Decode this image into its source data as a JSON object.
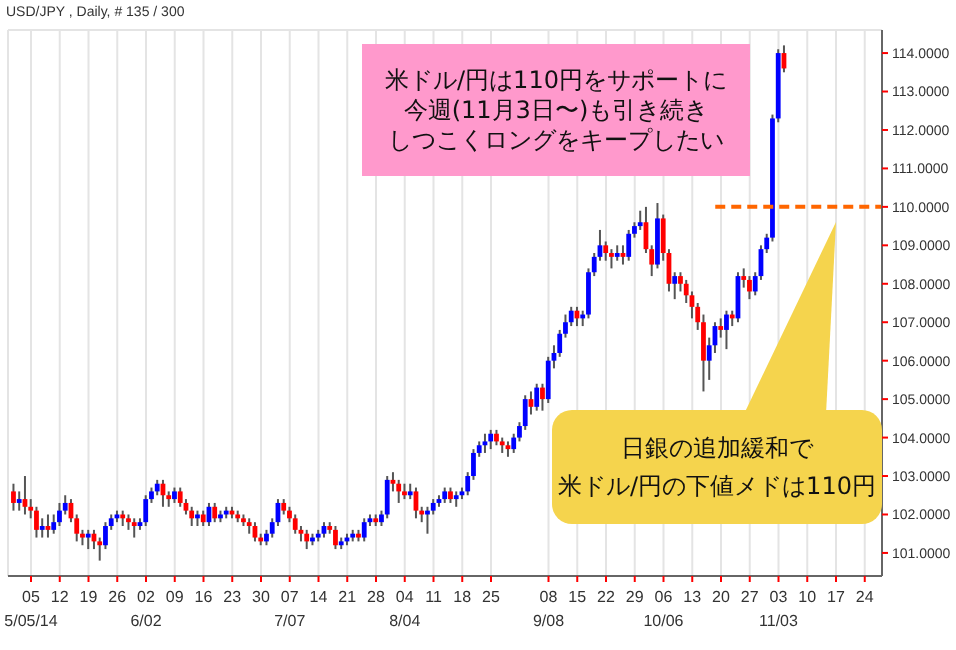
{
  "chart_data": {
    "type": "candlestick",
    "title": "USD/JPY , Daily, # 135 / 300",
    "categories": [
      null,
      null,
      null,
      "05\n5/05/14",
      null,
      null,
      null,
      null,
      "12",
      null,
      null,
      null,
      null,
      "19",
      null,
      null,
      null,
      null,
      "26",
      null,
      null,
      null,
      null,
      "02\n6/02",
      null,
      null,
      null,
      null,
      "09",
      null,
      null,
      null,
      null,
      "16",
      null,
      null,
      null,
      null,
      "23",
      null,
      null,
      null,
      null,
      "30",
      null,
      null,
      null,
      null,
      "07\n7/07",
      null,
      null,
      null,
      null,
      "14",
      null,
      null,
      null,
      null,
      "21",
      null,
      null,
      null,
      null,
      "28",
      null,
      null,
      null,
      null,
      "04\n8/04",
      null,
      null,
      null,
      null,
      "11",
      null,
      null,
      null,
      null,
      "18",
      null,
      null,
      null,
      null,
      "25",
      null,
      null,
      null,
      null,
      null,
      null,
      null,
      null,
      null,
      "08\n9/08",
      null,
      null,
      null,
      null,
      "15",
      null,
      null,
      null,
      null,
      "22",
      null,
      null,
      null,
      null,
      "29",
      null,
      null,
      null,
      null,
      "06\n10/06",
      null,
      null,
      null,
      null,
      "13",
      null,
      null,
      null,
      null,
      "20",
      null,
      null,
      null,
      null,
      "27",
      null,
      null,
      null,
      null,
      "03\n11/03",
      null,
      null,
      null,
      null,
      "10",
      null,
      null,
      null,
      null,
      "17",
      null,
      null,
      null,
      null,
      "24",
      null,
      null,
      null
    ],
    "ohlc": [
      [
        102.6,
        102.8,
        102.1,
        102.3
      ],
      [
        102.3,
        102.6,
        102.1,
        102.4
      ],
      [
        102.4,
        103.0,
        102.0,
        102.2
      ],
      [
        102.2,
        102.4,
        101.9,
        102.1
      ],
      [
        102.1,
        102.2,
        101.4,
        101.6
      ],
      [
        101.6,
        101.9,
        101.4,
        101.7
      ],
      [
        101.7,
        102.0,
        101.4,
        101.6
      ],
      [
        101.6,
        102.0,
        101.5,
        101.8
      ],
      [
        101.8,
        102.3,
        101.7,
        102.1
      ],
      [
        102.1,
        102.5,
        102.0,
        102.3
      ],
      [
        102.3,
        102.4,
        101.8,
        101.9
      ],
      [
        101.9,
        102.0,
        101.3,
        101.5
      ],
      [
        101.5,
        101.6,
        101.2,
        101.4
      ],
      [
        101.4,
        101.6,
        101.1,
        101.5
      ],
      [
        101.5,
        101.6,
        101.1,
        101.3
      ],
      [
        101.3,
        101.4,
        100.8,
        101.2
      ],
      [
        101.2,
        101.8,
        101.1,
        101.7
      ],
      [
        101.7,
        102.0,
        101.6,
        101.9
      ],
      [
        101.9,
        102.1,
        101.8,
        102.0
      ],
      [
        102.0,
        102.1,
        101.7,
        101.9
      ],
      [
        101.9,
        102.0,
        101.6,
        101.8
      ],
      [
        101.8,
        101.9,
        101.4,
        101.7
      ],
      [
        101.7,
        101.9,
        101.6,
        101.8
      ],
      [
        101.8,
        102.5,
        101.7,
        102.4
      ],
      [
        102.4,
        102.7,
        102.3,
        102.6
      ],
      [
        102.6,
        102.9,
        102.5,
        102.8
      ],
      [
        102.8,
        102.9,
        102.2,
        102.5
      ],
      [
        102.5,
        102.6,
        102.2,
        102.4
      ],
      [
        102.4,
        102.7,
        102.3,
        102.6
      ],
      [
        102.6,
        102.7,
        102.2,
        102.3
      ],
      [
        102.3,
        102.4,
        102.0,
        102.1
      ],
      [
        102.1,
        102.2,
        101.7,
        101.9
      ],
      [
        101.9,
        102.1,
        101.7,
        102.0
      ],
      [
        102.0,
        102.1,
        101.7,
        101.8
      ],
      [
        101.8,
        102.3,
        101.7,
        102.2
      ],
      [
        102.2,
        102.3,
        101.8,
        101.9
      ],
      [
        101.9,
        102.1,
        101.8,
        102.0
      ],
      [
        102.0,
        102.2,
        101.9,
        102.1
      ],
      [
        102.1,
        102.2,
        101.9,
        102.0
      ],
      [
        102.0,
        102.1,
        101.8,
        101.9
      ],
      [
        101.9,
        102.0,
        101.7,
        101.8
      ],
      [
        101.8,
        101.9,
        101.5,
        101.7
      ],
      [
        101.7,
        101.8,
        101.3,
        101.4
      ],
      [
        101.4,
        101.5,
        101.2,
        101.3
      ],
      [
        101.3,
        101.6,
        101.2,
        101.5
      ],
      [
        101.5,
        101.9,
        101.4,
        101.8
      ],
      [
        101.8,
        102.4,
        101.7,
        102.3
      ],
      [
        102.3,
        102.4,
        102.0,
        102.1
      ],
      [
        102.1,
        102.2,
        101.8,
        101.9
      ],
      [
        101.9,
        102.0,
        101.5,
        101.6
      ],
      [
        101.6,
        101.7,
        101.3,
        101.5
      ],
      [
        101.5,
        101.6,
        101.1,
        101.3
      ],
      [
        101.3,
        101.5,
        101.2,
        101.4
      ],
      [
        101.4,
        101.6,
        101.3,
        101.5
      ],
      [
        101.5,
        101.8,
        101.4,
        101.7
      ],
      [
        101.7,
        101.8,
        101.5,
        101.6
      ],
      [
        101.6,
        101.7,
        101.1,
        101.2
      ],
      [
        101.2,
        101.4,
        101.1,
        101.3
      ],
      [
        101.3,
        101.5,
        101.2,
        101.4
      ],
      [
        101.4,
        101.6,
        101.3,
        101.5
      ],
      [
        101.5,
        101.6,
        101.3,
        101.4
      ],
      [
        101.4,
        101.9,
        101.3,
        101.8
      ],
      [
        101.8,
        102.0,
        101.7,
        101.9
      ],
      [
        101.9,
        102.0,
        101.7,
        101.8
      ],
      [
        101.8,
        102.1,
        101.7,
        102.0
      ],
      [
        102.0,
        103.0,
        101.9,
        102.9
      ],
      [
        102.9,
        103.1,
        102.6,
        102.8
      ],
      [
        102.8,
        102.9,
        102.3,
        102.6
      ],
      [
        102.6,
        102.8,
        102.4,
        102.5
      ],
      [
        102.5,
        102.8,
        102.4,
        102.6
      ],
      [
        102.6,
        102.7,
        101.9,
        102.1
      ],
      [
        102.1,
        102.2,
        101.8,
        102.0
      ],
      [
        102.0,
        102.2,
        101.5,
        102.1
      ],
      [
        102.1,
        102.4,
        102.0,
        102.3
      ],
      [
        102.3,
        102.5,
        102.2,
        102.4
      ],
      [
        102.4,
        102.7,
        102.3,
        102.6
      ],
      [
        102.6,
        102.7,
        102.3,
        102.4
      ],
      [
        102.4,
        102.6,
        102.2,
        102.5
      ],
      [
        102.5,
        102.7,
        102.4,
        102.6
      ],
      [
        102.6,
        103.1,
        102.5,
        103.0
      ],
      [
        103.0,
        103.7,
        102.9,
        103.6
      ],
      [
        103.6,
        103.9,
        103.5,
        103.8
      ],
      [
        103.8,
        104.1,
        103.6,
        103.9
      ],
      [
        103.9,
        104.2,
        103.7,
        104.1
      ],
      [
        104.1,
        104.2,
        103.8,
        103.9
      ],
      [
        103.9,
        104.0,
        103.6,
        103.8
      ],
      [
        103.8,
        103.9,
        103.5,
        103.7
      ],
      [
        103.7,
        104.1,
        103.6,
        104.0
      ],
      [
        104.0,
        104.4,
        103.9,
        104.3
      ],
      [
        104.3,
        105.1,
        104.2,
        105.0
      ],
      [
        105.0,
        105.2,
        104.6,
        104.8
      ],
      [
        104.8,
        105.4,
        104.7,
        105.3
      ],
      [
        105.3,
        105.4,
        104.7,
        105.0
      ],
      [
        105.0,
        106.1,
        104.9,
        106.0
      ],
      [
        106.0,
        106.4,
        105.8,
        106.2
      ],
      [
        106.2,
        106.8,
        106.1,
        106.7
      ],
      [
        106.7,
        107.2,
        106.6,
        107.0
      ],
      [
        107.0,
        107.4,
        106.9,
        107.3
      ],
      [
        107.3,
        107.4,
        106.9,
        107.1
      ],
      [
        107.1,
        107.3,
        106.9,
        107.2
      ],
      [
        107.2,
        108.4,
        107.1,
        108.3
      ],
      [
        108.3,
        108.8,
        108.2,
        108.7
      ],
      [
        108.7,
        109.4,
        108.6,
        109.0
      ],
      [
        109.0,
        109.1,
        108.6,
        108.8
      ],
      [
        108.8,
        108.9,
        108.4,
        108.7
      ],
      [
        108.7,
        109.0,
        108.6,
        108.8
      ],
      [
        108.8,
        109.0,
        108.5,
        108.7
      ],
      [
        108.7,
        109.4,
        108.6,
        109.3
      ],
      [
        109.3,
        109.6,
        109.2,
        109.5
      ],
      [
        109.5,
        109.9,
        109.4,
        109.6
      ],
      [
        109.6,
        110.0,
        108.8,
        108.9
      ],
      [
        108.9,
        109.0,
        108.2,
        108.5
      ],
      [
        108.5,
        110.1,
        108.4,
        109.7
      ],
      [
        109.7,
        109.8,
        108.6,
        108.8
      ],
      [
        108.8,
        108.9,
        107.8,
        108.0
      ],
      [
        108.0,
        108.3,
        107.6,
        108.2
      ],
      [
        108.2,
        108.3,
        107.8,
        108.0
      ],
      [
        108.0,
        108.1,
        107.5,
        107.7
      ],
      [
        107.7,
        107.8,
        107.1,
        107.4
      ],
      [
        107.4,
        107.5,
        106.8,
        107.0
      ],
      [
        107.0,
        107.2,
        105.2,
        106.0
      ],
      [
        106.0,
        106.6,
        105.5,
        106.4
      ],
      [
        106.4,
        107.0,
        106.2,
        106.9
      ],
      [
        106.9,
        107.1,
        106.6,
        106.8
      ],
      [
        106.8,
        107.3,
        106.3,
        107.2
      ],
      [
        107.2,
        107.3,
        106.9,
        107.1
      ],
      [
        107.1,
        108.3,
        107.0,
        108.2
      ],
      [
        108.2,
        108.4,
        107.9,
        108.1
      ],
      [
        108.1,
        108.2,
        107.6,
        107.8
      ],
      [
        107.8,
        108.3,
        107.7,
        108.2
      ],
      [
        108.2,
        109.0,
        108.1,
        108.9
      ],
      [
        108.9,
        109.3,
        108.8,
        109.2
      ],
      [
        109.2,
        112.4,
        109.1,
        112.3
      ],
      [
        112.3,
        114.1,
        112.2,
        114.0
      ],
      [
        114.0,
        114.2,
        113.5,
        113.6
      ],
      null,
      null,
      null,
      null,
      null,
      null,
      null,
      null,
      null,
      null,
      null,
      null,
      null,
      null,
      null,
      null,
      null
    ],
    "ylim": [
      100.4,
      114.6
    ],
    "yticks": [
      {
        "value": 101,
        "label": "101.0000"
      },
      {
        "value": 102,
        "label": "102.0000"
      },
      {
        "value": 103,
        "label": "103.0000"
      },
      {
        "value": 104,
        "label": "104.0000"
      },
      {
        "value": 105,
        "label": "105.0000"
      },
      {
        "value": 106,
        "label": "106.0000"
      },
      {
        "value": 107,
        "label": "107.0000"
      },
      {
        "value": 108,
        "label": "108.0000"
      },
      {
        "value": 109,
        "label": "109.0000"
      },
      {
        "value": 110,
        "label": "110.0000"
      },
      {
        "value": 111,
        "label": "111.0000"
      },
      {
        "value": 112,
        "label": "112.0000"
      },
      {
        "value": 113,
        "label": "113.0000"
      },
      {
        "value": 114,
        "label": "114.0000"
      }
    ],
    "grid": true,
    "ref_lines": [
      {
        "axis": "y",
        "value": 110,
        "color": "#ff6600",
        "line_style": "dashed"
      }
    ],
    "annotations": [
      "米ドル/円は110円をサポートに今週(11月3日〜)も引き続きしつこくロングをキープしたい",
      "日銀の追加緩和で米ドル/円の下値メドは110円"
    ]
  }
}
